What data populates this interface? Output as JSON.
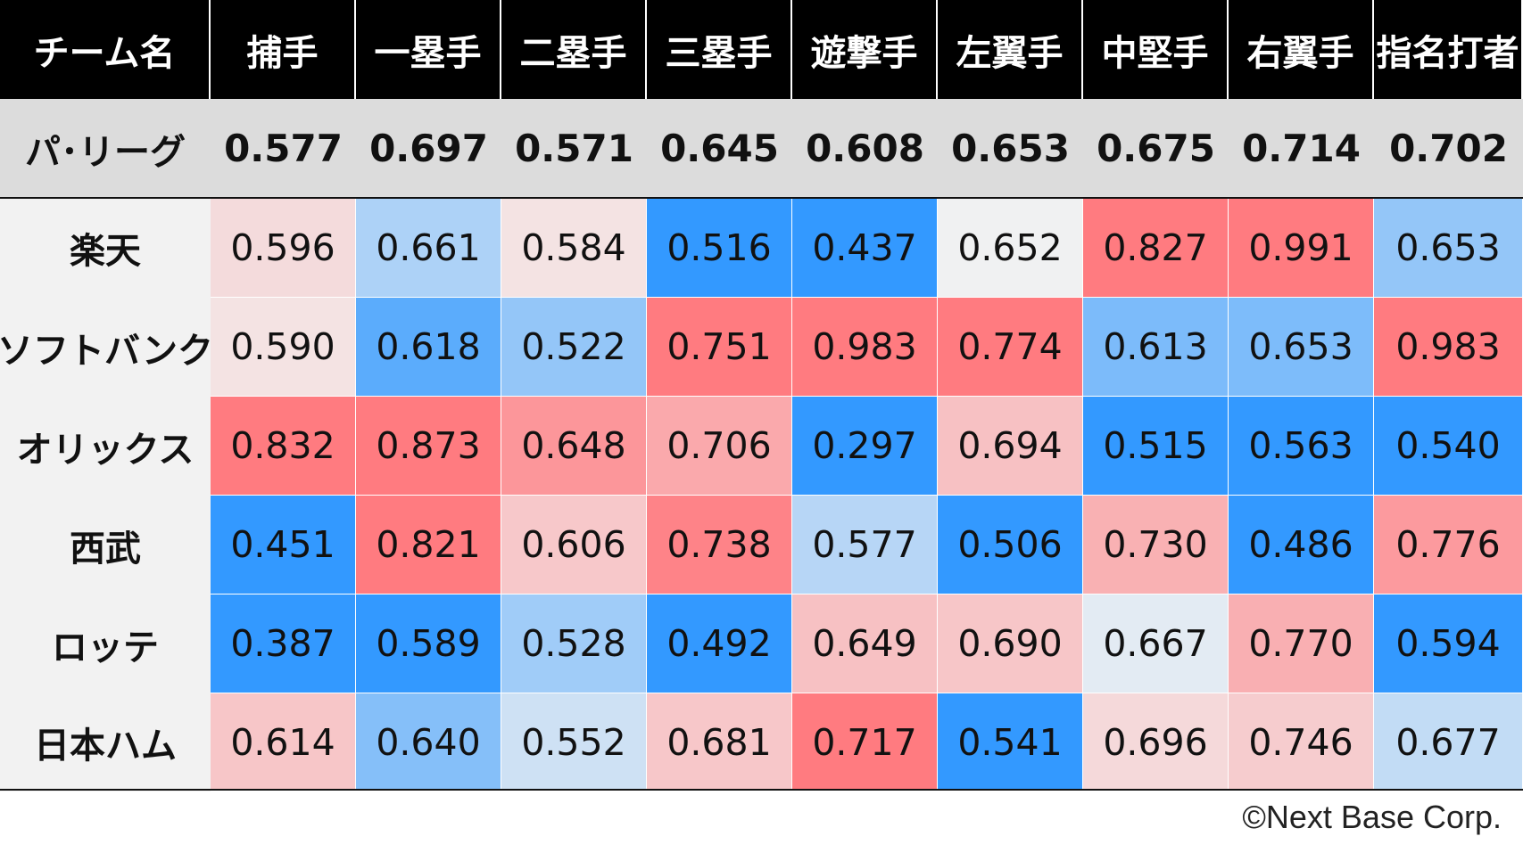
{
  "chart_data": {
    "type": "heatmap",
    "header": [
      "チーム名",
      "捕手",
      "一塁手",
      "二塁手",
      "三塁手",
      "遊撃手",
      "左翼手",
      "中堅手",
      "右翼手",
      "指名打者"
    ],
    "league": {
      "label": "パ･リーグ",
      "values": [
        "0.577",
        "0.697",
        "0.571",
        "0.645",
        "0.608",
        "0.653",
        "0.675",
        "0.714",
        "0.702"
      ]
    },
    "teams": [
      {
        "name": "楽天",
        "values": [
          "0.596",
          "0.661",
          "0.584",
          "0.516",
          "0.437",
          "0.652",
          "0.827",
          "0.991",
          "0.653"
        ]
      },
      {
        "name": "ソフトバンク",
        "values": [
          "0.590",
          "0.618",
          "0.522",
          "0.751",
          "0.983",
          "0.774",
          "0.613",
          "0.653",
          "0.983"
        ]
      },
      {
        "name": "オリックス",
        "values": [
          "0.832",
          "0.873",
          "0.648",
          "0.706",
          "0.297",
          "0.694",
          "0.515",
          "0.563",
          "0.540"
        ]
      },
      {
        "name": "西武",
        "values": [
          "0.451",
          "0.821",
          "0.606",
          "0.738",
          "0.577",
          "0.506",
          "0.730",
          "0.486",
          "0.776"
        ]
      },
      {
        "name": "ロッテ",
        "values": [
          "0.387",
          "0.589",
          "0.528",
          "0.492",
          "0.649",
          "0.690",
          "0.667",
          "0.770",
          "0.594"
        ]
      },
      {
        "name": "日本ハム",
        "values": [
          "0.614",
          "0.640",
          "0.552",
          "0.681",
          "0.717",
          "0.541",
          "0.696",
          "0.746",
          "0.677"
        ]
      }
    ],
    "color_scale": {
      "low": "#3399ff",
      "mid": "#f2f2f2",
      "high": "#ff7b80",
      "reference": "league average per column"
    }
  },
  "footer": {
    "copyright": "©Next Base Corp."
  }
}
